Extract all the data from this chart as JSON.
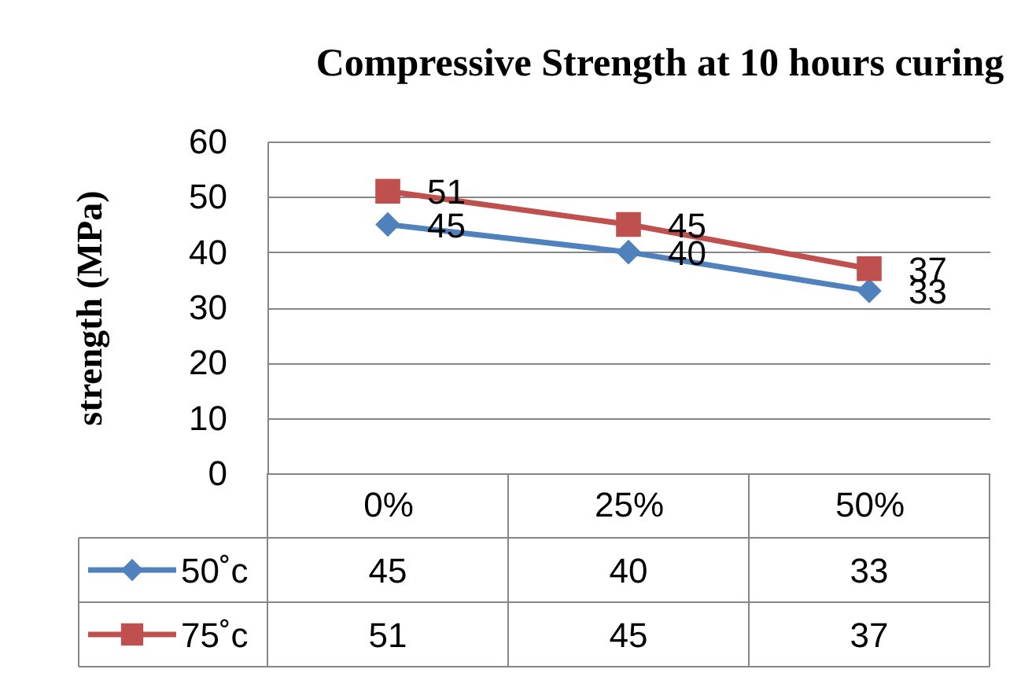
{
  "chart_data": {
    "type": "line",
    "title": "Compressive Strength at 10 hours curing",
    "ylabel": "strength (MPa)",
    "categories": [
      "0%",
      "25%",
      "50%"
    ],
    "series": [
      {
        "name": "50˚c",
        "color": "#4f81bd",
        "marker": "diamond",
        "values": [
          45,
          40,
          33
        ]
      },
      {
        "name": "75˚c",
        "color": "#c0504d",
        "marker": "square",
        "values": [
          51,
          45,
          37
        ]
      }
    ],
    "ylim": [
      0,
      60
    ],
    "yticks": [
      0,
      10,
      20,
      30,
      40,
      50,
      60
    ],
    "grid": "y",
    "legend": "bottom",
    "data_labels": true,
    "annotations": [
      {
        "text": "45",
        "x": "0%",
        "y": 45
      },
      {
        "text": "40",
        "x": "25%",
        "y": 40
      },
      {
        "text": "33",
        "x": "50%",
        "y": 33
      },
      {
        "text": "51",
        "x": "0%",
        "y": 51
      },
      {
        "text": "45",
        "x": "25%",
        "y": 45
      },
      {
        "text": "37",
        "x": "50%",
        "y": 37
      }
    ]
  }
}
